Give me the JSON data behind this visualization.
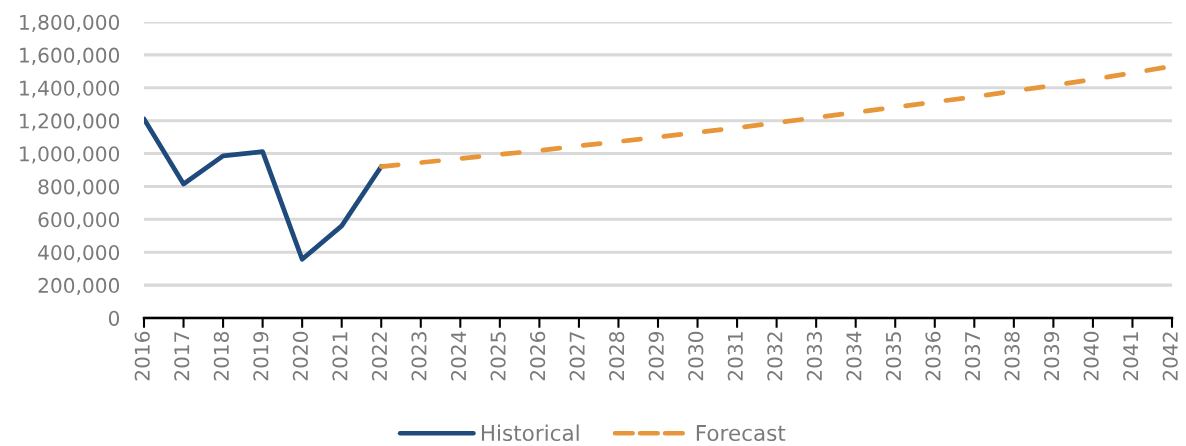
{
  "chart_data": {
    "type": "line",
    "categories": [
      "2016",
      "2017",
      "2018",
      "2019",
      "2020",
      "2021",
      "2022",
      "2023",
      "2024",
      "2025",
      "2026",
      "2027",
      "2028",
      "2029",
      "2030",
      "2031",
      "2032",
      "2033",
      "2034",
      "2035",
      "2036",
      "2037",
      "2038",
      "2039",
      "2040",
      "2041",
      "2042"
    ],
    "series": [
      {
        "name": "Historical",
        "color": "#1f4a7c",
        "line_style": "solid",
        "values": [
          1210000,
          815000,
          986000,
          1012000,
          357000,
          560000,
          921000,
          null,
          null,
          null,
          null,
          null,
          null,
          null,
          null,
          null,
          null,
          null,
          null,
          null,
          null,
          null,
          null,
          null,
          null,
          null,
          null
        ]
      },
      {
        "name": "Forecast",
        "color": "#e8963a",
        "line_style": "dashed",
        "values": [
          null,
          null,
          null,
          null,
          null,
          null,
          921000,
          945000,
          970000,
          995000,
          1018000,
          1047000,
          1073000,
          1100000,
          1128000,
          1157000,
          1187000,
          1219000,
          1250000,
          1282000,
          1314000,
          1345000,
          1380000,
          1415000,
          1451000,
          1490000,
          1531000
        ]
      }
    ],
    "ylim": [
      0,
      1800000
    ],
    "yticks": [
      0,
      {
        "value": 200000,
        "label": "200,000"
      },
      {
        "value": 400000,
        "label": "400,000"
      },
      {
        "value": 600000,
        "label": "600,000"
      },
      {
        "value": 800000,
        "label": "800,000"
      },
      {
        "value": 1000000,
        "label": "1,000,000"
      },
      {
        "value": 1200000,
        "label": "1,200,000"
      },
      {
        "value": 1400000,
        "label": "1,400,000"
      },
      {
        "value": 1600000,
        "label": "1,600,000"
      },
      {
        "value": 1800000,
        "label": "1,800,000"
      }
    ],
    "grid": "y",
    "legend": "bottom"
  }
}
